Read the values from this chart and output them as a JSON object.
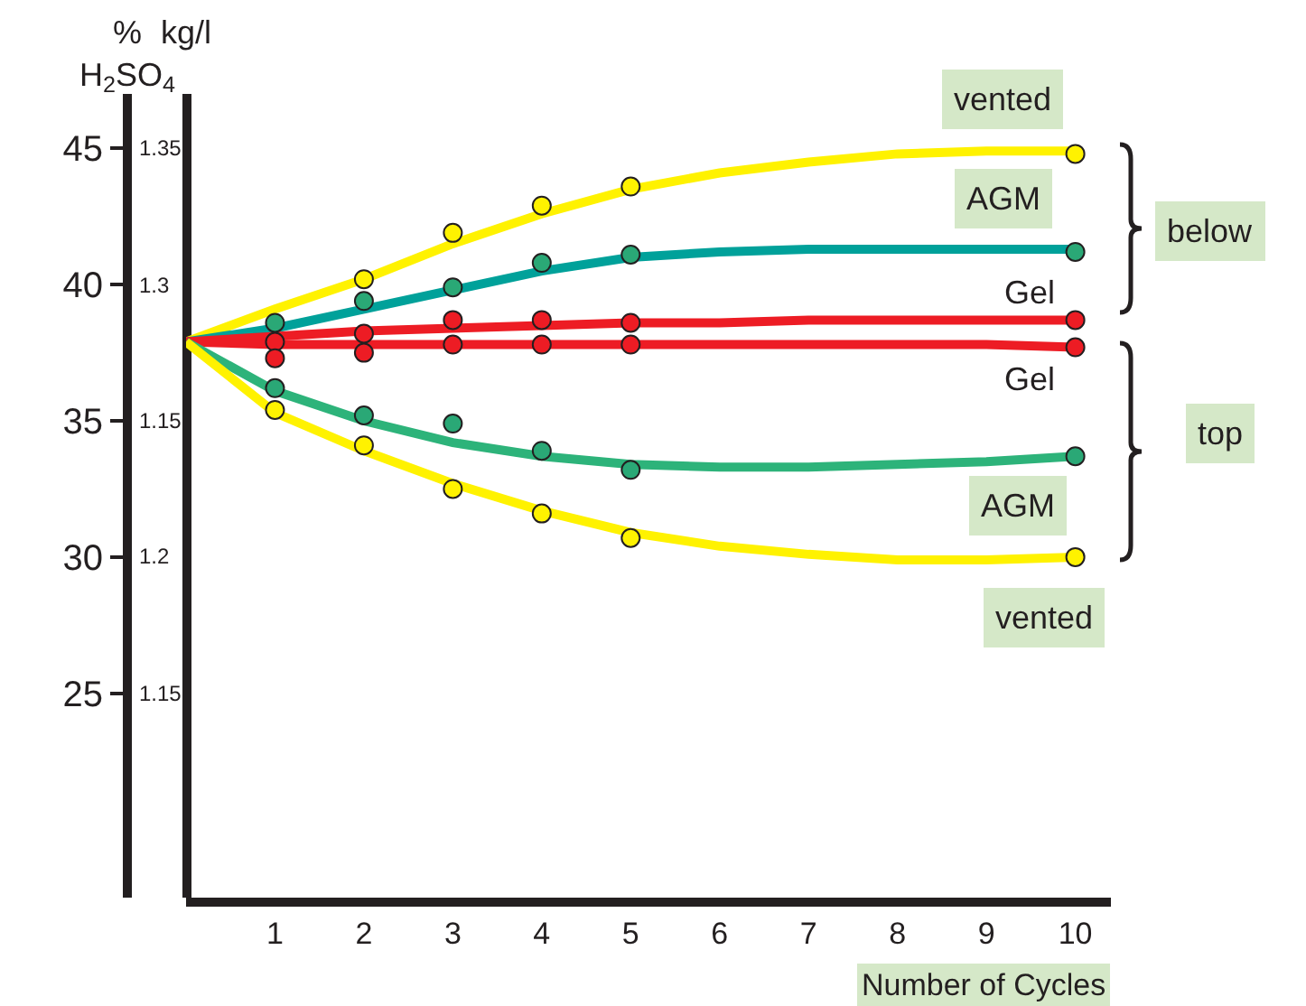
{
  "chart_data": {
    "type": "line",
    "xlabel": "Number of Cycles",
    "ylabel": "%\nH$_{2}$SO$_{4}$",
    "y2label": "kg/l",
    "xlim": [
      0,
      10.4
    ],
    "xticks": [
      1,
      2,
      3,
      4,
      5,
      6,
      7,
      8,
      9,
      10
    ],
    "ylim": [
      17.5,
      47
    ],
    "yticks": [
      45,
      40,
      35,
      30,
      25
    ],
    "line_style": "solid",
    "series": [
      {
        "color": "#fff200",
        "x": [
          0,
          1,
          2,
          3,
          4,
          5,
          6,
          7,
          8,
          9,
          10
        ],
        "values": [
          37.9,
          39.1,
          40.2,
          41.5,
          42.6,
          43.5,
          44.1,
          44.5,
          44.8,
          44.9,
          44.9
        ]
      },
      {
        "color": "#00a19a",
        "x": [
          0,
          1,
          2,
          3,
          4,
          5,
          6,
          7,
          8,
          9,
          10
        ],
        "values": [
          37.9,
          38.4,
          39.1,
          39.8,
          40.5,
          41.0,
          41.2,
          41.3,
          41.3,
          41.3,
          41.3
        ]
      },
      {
        "color": "#ed1c24",
        "x": [
          0,
          1,
          2,
          3,
          4,
          5,
          6,
          7,
          8,
          9,
          10
        ],
        "values": [
          37.9,
          38.1,
          38.3,
          38.4,
          38.5,
          38.6,
          38.6,
          38.7,
          38.7,
          38.7,
          38.7
        ]
      },
      {
        "color": "#ed1c24",
        "x": [
          0,
          1,
          2,
          3,
          4,
          5,
          6,
          7,
          8,
          9,
          10
        ],
        "values": [
          37.9,
          37.8,
          37.8,
          37.8,
          37.8,
          37.8,
          37.8,
          37.8,
          37.8,
          37.8,
          37.7
        ]
      },
      {
        "color": "#2db37a",
        "x": [
          0,
          1,
          2,
          3,
          4,
          5,
          6,
          7,
          8,
          9,
          10
        ],
        "values": [
          37.9,
          36.1,
          35.0,
          34.2,
          33.7,
          33.4,
          33.3,
          33.3,
          33.4,
          33.5,
          33.7
        ]
      },
      {
        "color": "#fff200",
        "x": [
          0,
          1,
          2,
          3,
          4,
          5,
          6,
          7,
          8,
          9,
          10
        ],
        "values": [
          37.9,
          35.3,
          33.9,
          32.7,
          31.7,
          30.9,
          30.4,
          30.1,
          29.9,
          29.9,
          30.0
        ]
      },
      {
        "type": "scatter",
        "marker": "circle",
        "color": "#fff200",
        "x": [
          2,
          3,
          4,
          5,
          10
        ],
        "values": [
          40.2,
          41.9,
          42.9,
          43.6,
          44.8
        ]
      },
      {
        "type": "scatter",
        "marker": "circle",
        "color": "#2aa876",
        "x": [
          1,
          2,
          3,
          4,
          5,
          10
        ],
        "values": [
          38.6,
          39.4,
          39.9,
          40.8,
          41.1,
          41.2
        ]
      },
      {
        "type": "scatter",
        "marker": "circle",
        "color": "#ed1c24",
        "x": [
          1,
          2,
          3,
          4,
          5,
          10
        ],
        "values": [
          37.9,
          38.2,
          38.7,
          38.7,
          38.6,
          38.7
        ]
      },
      {
        "type": "scatter",
        "marker": "circle",
        "color": "#ed1c24",
        "x": [
          1,
          2,
          3,
          4,
          5,
          10
        ],
        "values": [
          37.3,
          37.5,
          37.8,
          37.8,
          37.8,
          37.7
        ]
      },
      {
        "type": "scatter",
        "marker": "circle",
        "color": "#2aa876",
        "x": [
          1,
          2,
          3,
          4,
          5,
          10
        ],
        "values": [
          36.2,
          35.2,
          34.9,
          33.9,
          33.2,
          33.7
        ]
      },
      {
        "type": "scatter",
        "marker": "circle",
        "color": "#fff200",
        "x": [
          1,
          2,
          3,
          4,
          5,
          10
        ],
        "values": [
          35.4,
          34.1,
          32.5,
          31.6,
          30.7,
          30.0
        ]
      }
    ],
    "annotations": [
      "vented",
      "AGM",
      "Gel",
      "Gel",
      "AGM",
      "vented",
      "1.35",
      "1.3",
      "1.15",
      "1.2",
      "1.15",
      "below",
      "top"
    ]
  }
}
